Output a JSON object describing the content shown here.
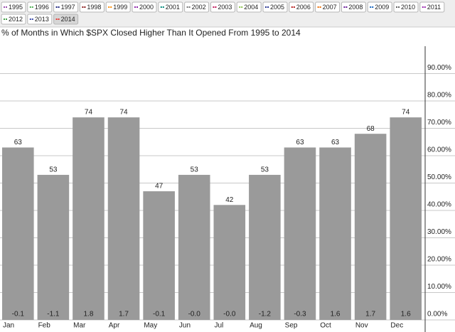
{
  "chart_data": {
    "type": "bar",
    "legend": [
      {
        "name": "1995",
        "color": "#9a4fb0"
      },
      {
        "name": "1996",
        "color": "#4caf50"
      },
      {
        "name": "1997",
        "color": "#1a237e"
      },
      {
        "name": "1998",
        "color": "#8b1a1a"
      },
      {
        "name": "1999",
        "color": "#ff8c00"
      },
      {
        "name": "2000",
        "color": "#8e24aa"
      },
      {
        "name": "2001",
        "color": "#00897b"
      },
      {
        "name": "2002",
        "color": "#757575"
      },
      {
        "name": "2003",
        "color": "#c2185b"
      },
      {
        "name": "2004",
        "color": "#8bc34a"
      },
      {
        "name": "2005",
        "color": "#283593"
      },
      {
        "name": "2006",
        "color": "#b71c1c"
      },
      {
        "name": "2007",
        "color": "#ef6c00"
      },
      {
        "name": "2008",
        "color": "#6a1b9a"
      },
      {
        "name": "2009",
        "color": "#1565c0"
      },
      {
        "name": "2010",
        "color": "#616161"
      },
      {
        "name": "2011",
        "color": "#9c27b0"
      },
      {
        "name": "2012",
        "color": "#43a047"
      },
      {
        "name": "2013",
        "color": "#3949ab"
      },
      {
        "name": "2014",
        "color": "#e53935",
        "selected": true
      }
    ],
    "title": "% of Months in Which $SPX Closed Higher Than It Opened From 1995 to 2014",
    "categories": [
      "Jan",
      "Feb",
      "Mar",
      "Apr",
      "May",
      "Jun",
      "Jul",
      "Aug",
      "Sep",
      "Oct",
      "Nov",
      "Dec"
    ],
    "values": [
      63,
      53,
      74,
      74,
      47,
      53,
      42,
      53,
      63,
      63,
      68,
      74
    ],
    "bar_footnotes": [
      "-0.1",
      "-1.1",
      "1.8",
      "1.7",
      "-0.1",
      "-0.0",
      "-0.0",
      "-1.2",
      "-0.3",
      "1.6",
      "1.7",
      "1.6"
    ],
    "color": "#9a9a9a",
    "ylim": [
      0,
      100
    ],
    "yticks": [
      {
        "value": 0,
        "label": "0.00%"
      },
      {
        "value": 10,
        "label": "10.00%"
      },
      {
        "value": 20,
        "label": "20.00%"
      },
      {
        "value": 30,
        "label": "30.00%"
      },
      {
        "value": 40,
        "label": "40.00%"
      },
      {
        "value": 50,
        "label": "50.00%"
      },
      {
        "value": 60,
        "label": "60.00%"
      },
      {
        "value": 70,
        "label": "70.00%"
      },
      {
        "value": 80,
        "label": "80.00%"
      },
      {
        "value": 90,
        "label": "90.00%"
      }
    ],
    "grid": true
  }
}
